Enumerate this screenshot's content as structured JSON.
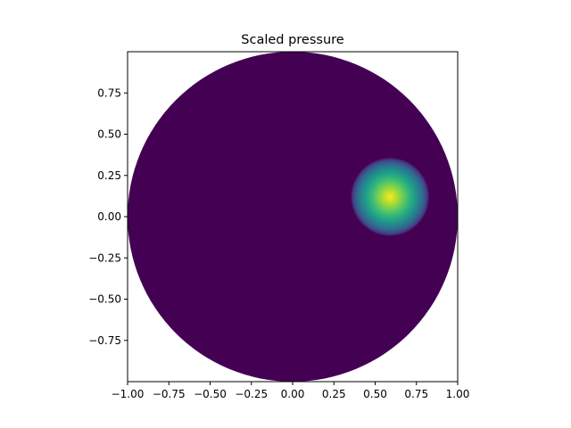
{
  "chart_data": {
    "type": "heatmap",
    "title": "Scaled pressure",
    "xlabel": "",
    "ylabel": "",
    "xlim": [
      -1.0,
      1.0
    ],
    "ylim": [
      -1.0,
      1.0
    ],
    "x_ticks": [
      "−1.00",
      "−0.75",
      "−0.50",
      "−0.25",
      "0.00",
      "0.25",
      "0.50",
      "0.75",
      "1.00"
    ],
    "y_ticks": [
      "0.75",
      "0.50",
      "0.25",
      "0.00",
      "−0.25",
      "−0.50",
      "−0.75"
    ],
    "x_tick_values": [
      -1.0,
      -0.75,
      -0.5,
      -0.25,
      0.0,
      0.25,
      0.5,
      0.75,
      1.0
    ],
    "y_tick_values": [
      0.75,
      0.5,
      0.25,
      0.0,
      -0.25,
      -0.5,
      -0.75
    ],
    "domain": {
      "shape": "circle",
      "center": [
        0.0,
        0.0
      ],
      "radius": 1.0
    },
    "peak": {
      "x": 0.59,
      "y": 0.12,
      "value": 1.0
    },
    "background_value": 0.0,
    "grid": false,
    "colormap": "viridis",
    "colors": {
      "low": "#440154",
      "mid": "#21918c",
      "high": "#fde725"
    }
  }
}
